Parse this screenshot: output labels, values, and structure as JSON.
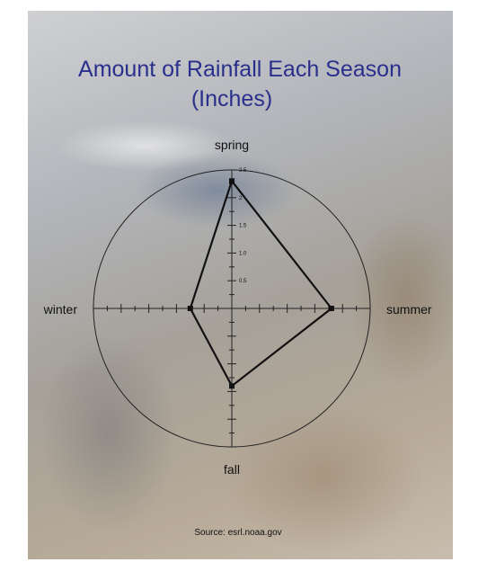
{
  "chart_data": {
    "type": "radar",
    "title_line1": "Amount of Rainfall Each Season",
    "title_line2": "(Inches)",
    "categories": [
      "spring",
      "summer",
      "fall",
      "winter"
    ],
    "values": [
      2.3,
      1.8,
      1.4,
      0.75
    ],
    "rlim": [
      0,
      2.5
    ],
    "tick_labels": [
      "0.5",
      "1.0",
      "1.5",
      "2",
      "2.5"
    ],
    "tick_values": [
      0.5,
      1.0,
      1.5,
      2.0,
      2.5
    ],
    "grid": false,
    "source": "Source: esrl.noaa.gov"
  },
  "colors": {
    "title": "#2b2f8c",
    "line": "#111111",
    "circle": "#222222"
  }
}
